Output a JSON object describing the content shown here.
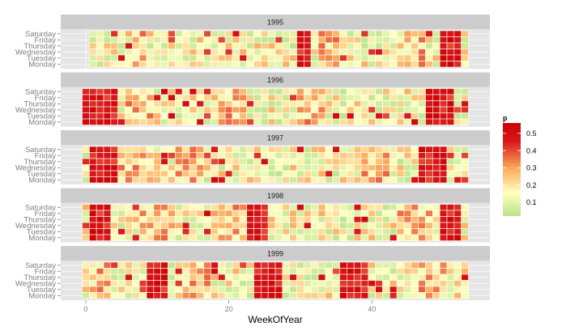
{
  "chart_data": {
    "type": "heatmap",
    "title": "",
    "xlabel": "WeekOfYear",
    "ylabel": "",
    "facet_titles": [
      "1995",
      "1996",
      "1997",
      "1998",
      "1999"
    ],
    "y_categories": [
      "Saturday",
      "Friday",
      "Thursday",
      "Wednesday",
      "Tuesday",
      "Monday"
    ],
    "x_ticks": [
      "0",
      "20",
      "40"
    ],
    "x_tick_values": [
      0,
      20,
      40
    ],
    "xlim": [
      -3.5,
      56.5
    ],
    "grid": true,
    "legend": {
      "title": "p",
      "placement": "right",
      "ticks": [
        "0.5",
        "0.4",
        "0.3",
        "0.2",
        "0.1"
      ],
      "tick_values": [
        0.5,
        0.4,
        0.3,
        0.2,
        0.1
      ],
      "range": [
        0.02,
        0.56
      ],
      "colors": [
        "#b9e38a",
        "#ffffbf",
        "#fdae61",
        "#d7191c",
        "#cc0000"
      ]
    },
    "facets": [
      {
        "year": "1995",
        "week_start": 1,
        "week_end": 53,
        "hot_week_ranges": [
          [
            30,
            31
          ],
          [
            50,
            52
          ]
        ],
        "warm_week_ranges": [
          [
            7,
            8
          ],
          [
            33,
            35
          ],
          [
            45,
            47
          ]
        ],
        "seed": 11
      },
      {
        "year": "1996",
        "week_start": 0,
        "week_end": 53,
        "hot_week_ranges": [
          [
            0,
            4
          ],
          [
            48,
            51
          ]
        ],
        "warm_week_ranges": [
          [
            6,
            9
          ],
          [
            19,
            22
          ],
          [
            30,
            33
          ]
        ],
        "seed": 23
      },
      {
        "year": "1997",
        "week_start": 0,
        "week_end": 53,
        "hot_week_ranges": [
          [
            1,
            4
          ],
          [
            47,
            50
          ]
        ],
        "warm_week_ranges": [
          [
            5,
            9
          ],
          [
            13,
            16
          ],
          [
            39,
            42
          ]
        ],
        "seed": 37
      },
      {
        "year": "1998",
        "week_start": 0,
        "week_end": 53,
        "hot_week_ranges": [
          [
            1,
            3
          ],
          [
            23,
            25
          ],
          [
            50,
            52
          ]
        ],
        "warm_week_ranges": [
          [
            8,
            12
          ],
          [
            18,
            22
          ],
          [
            44,
            48
          ]
        ],
        "seed": 41
      },
      {
        "year": "1999",
        "week_start": 0,
        "week_end": 53,
        "hot_week_ranges": [
          [
            9,
            11
          ],
          [
            24,
            27
          ],
          [
            36,
            39
          ]
        ],
        "warm_week_ranges": [
          [
            1,
            3
          ],
          [
            14,
            17
          ],
          [
            46,
            50
          ]
        ],
        "seed": 59
      }
    ]
  }
}
